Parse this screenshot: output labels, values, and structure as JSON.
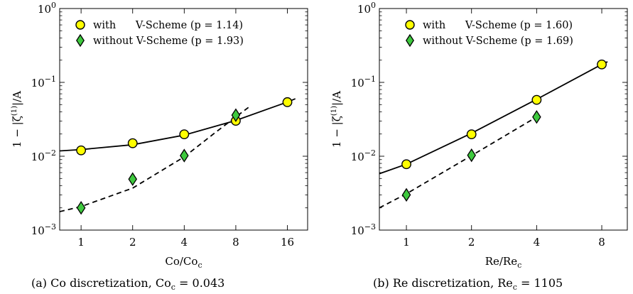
{
  "chart_data": [
    {
      "type": "scatter",
      "y_scale": "log",
      "x_scale": "log2",
      "ylim": [
        0.001,
        1
      ],
      "xlim": [
        0.75,
        21
      ],
      "xticks": [
        1,
        2,
        4,
        8,
        16
      ],
      "xtick_labels": [
        "1",
        "2",
        "4",
        "8",
        "16"
      ],
      "yticks": [
        0.001,
        0.01,
        0.1,
        1
      ],
      "ytick_labels": [
        {
          "base": "10",
          "exp": "−3"
        },
        {
          "base": "10",
          "exp": "−2"
        },
        {
          "base": "10",
          "exp": "−1"
        },
        {
          "base": "10",
          "exp": "0"
        }
      ],
      "xlabel": {
        "main": "Co/Co",
        "sub": "c"
      },
      "ylabel": {
        "pre": "1 − |ζ",
        "sup": "(1)",
        "post": "|/A"
      },
      "legend_placement": "top-left",
      "caption": {
        "prefix": "(a) Co discretization, Co",
        "sub": "c",
        "suffix": " = 0.043"
      },
      "series": [
        {
          "name": "with      V-Scheme (p = 1.14)",
          "marker": "circle",
          "color": "#ffff00",
          "line": "solid",
          "x": [
            1,
            2,
            4,
            8,
            16
          ],
          "values": [
            0.012,
            0.015,
            0.0198,
            0.0302,
            0.054
          ],
          "fit": {
            "x": [
              0.75,
              1,
              2,
              4,
              8,
              16,
              17.8
            ],
            "values": [
              0.0118,
              0.0123,
              0.0143,
              0.0193,
              0.0305,
              0.0542,
              0.06
            ]
          }
        },
        {
          "name": "without V-Scheme (p = 1.93)",
          "marker": "diamond",
          "color": "#3ec93e",
          "line": "dashed",
          "x": [
            1,
            2,
            4,
            8
          ],
          "values": [
            0.002,
            0.0049,
            0.0102,
            0.036
          ],
          "fit": {
            "x": [
              0.75,
              1,
              2,
              4,
              6,
              8,
              9.5
            ],
            "values": [
              0.00178,
              0.00208,
              0.0037,
              0.0098,
              0.0205,
              0.034,
              0.046
            ]
          }
        }
      ]
    },
    {
      "type": "scatter",
      "y_scale": "log",
      "x_scale": "log2",
      "ylim": [
        0.001,
        1
      ],
      "xlim": [
        0.75,
        10.5
      ],
      "xticks": [
        1,
        2,
        4,
        8
      ],
      "xtick_labels": [
        "1",
        "2",
        "4",
        "8"
      ],
      "yticks": [
        0.001,
        0.01,
        0.1,
        1
      ],
      "ytick_labels": [
        {
          "base": "10",
          "exp": "−3"
        },
        {
          "base": "10",
          "exp": "−2"
        },
        {
          "base": "10",
          "exp": "−1"
        },
        {
          "base": "10",
          "exp": "0"
        }
      ],
      "xlabel": {
        "main": "Re/Re",
        "sub": "c"
      },
      "ylabel": {
        "pre": "1 − |ζ",
        "sup": "(1)",
        "post": "|/A"
      },
      "legend_placement": "top-left",
      "caption": {
        "prefix": "(b) Re discretization, Re",
        "sub": "c",
        "suffix": " = 1105"
      },
      "series": [
        {
          "name": "with      V-Scheme (p = 1.60)",
          "marker": "circle",
          "color": "#ffff00",
          "line": "solid",
          "x": [
            1,
            2,
            4,
            8
          ],
          "values": [
            0.0078,
            0.0198,
            0.058,
            0.175
          ],
          "fit": {
            "x": [
              0.75,
              1,
              2,
              4,
              8,
              8.5
            ],
            "values": [
              0.0058,
              0.0078,
              0.0205,
              0.059,
              0.175,
              0.19
            ]
          }
        },
        {
          "name": "without V-Scheme (p = 1.69)",
          "marker": "diamond",
          "color": "#3ec93e",
          "line": "dashed",
          "x": [
            1,
            2,
            4
          ],
          "values": [
            0.003,
            0.0103,
            0.034
          ],
          "fit": {
            "x": [
              0.75,
              1,
              2,
              4
            ],
            "values": [
              0.002,
              0.0031,
              0.0102,
              0.034
            ]
          }
        }
      ]
    }
  ]
}
